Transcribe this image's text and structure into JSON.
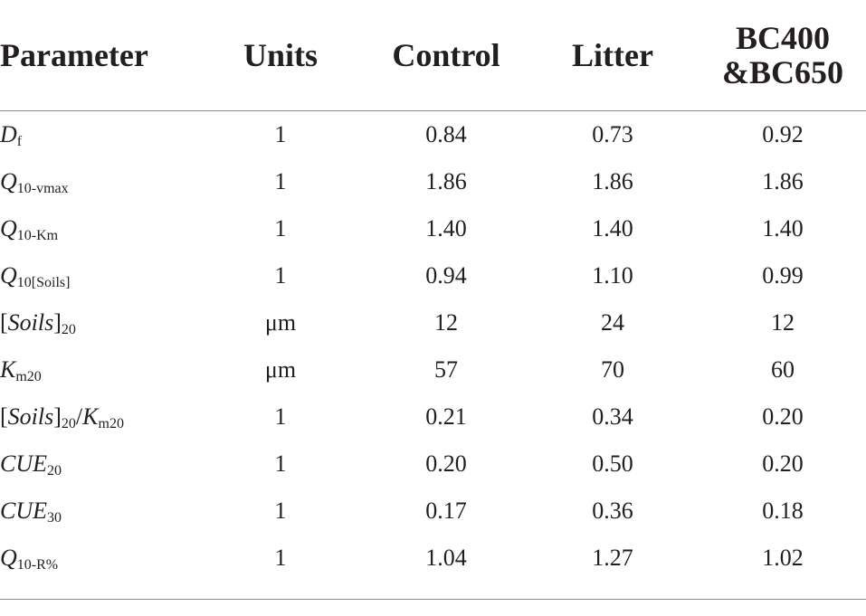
{
  "headers": {
    "parameter": "Parameter",
    "units": "Units",
    "control": "Control",
    "litter": "Litter",
    "bc_line1": "BC400",
    "bc_line2": "&BC650"
  },
  "rows": [
    {
      "p_main": "D",
      "p_sub": "f",
      "units": "1",
      "control": "0.84",
      "litter": "0.73",
      "bc": "0.92"
    },
    {
      "p_main": "Q",
      "p_sub": "10-vmax",
      "units": "1",
      "control": "1.86",
      "litter": "1.86",
      "bc": "1.86"
    },
    {
      "p_main": "Q",
      "p_sub": "10-Km",
      "units": "1",
      "control": "1.40",
      "litter": "1.40",
      "bc": "1.40"
    },
    {
      "p_main": "Q",
      "p_sub": "10[Soils]",
      "units": "1",
      "control": "0.94",
      "litter": "1.10",
      "bc": "0.99"
    },
    {
      "p_open": "[",
      "p_main": "Soils",
      "p_close": "]",
      "p_sub": "20",
      "units": "μm",
      "control": "12",
      "litter": "24",
      "bc": "12"
    },
    {
      "p_main": "K",
      "p_sub": "m20",
      "units": "μm",
      "control": "57",
      "litter": "70",
      "bc": "60"
    },
    {
      "p_open": "[",
      "p_main": "Soils",
      "p_close": "]",
      "p_sub": "20",
      "p_slash": "/",
      "p_main2": "K",
      "p_sub2": "m20",
      "units": "1",
      "control": "0.21",
      "litter": "0.34",
      "bc": "0.20"
    },
    {
      "p_main": "CUE",
      "p_sub": "20",
      "units": "1",
      "control": "0.20",
      "litter": "0.50",
      "bc": "0.20"
    },
    {
      "p_main": "CUE",
      "p_sub": "30",
      "units": "1",
      "control": "0.17",
      "litter": "0.36",
      "bc": "0.18"
    },
    {
      "p_main": "Q",
      "p_sub": "10-R%",
      "units": "1",
      "control": "1.04",
      "litter": "1.27",
      "bc": "1.02"
    }
  ]
}
